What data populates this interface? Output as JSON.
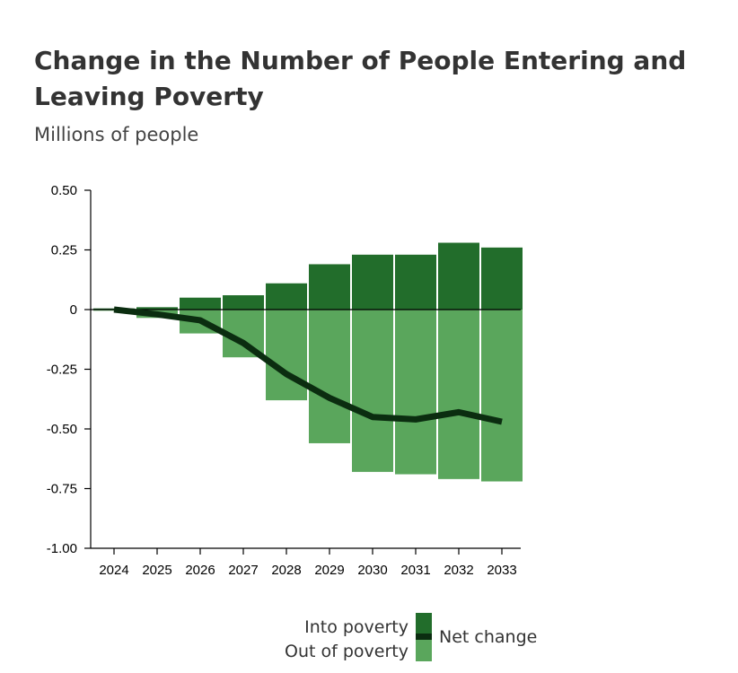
{
  "title": "Change in the Number of People Entering and Leaving Poverty",
  "subtitle": "Millions of people",
  "colors": {
    "into": "#226d2b",
    "out": "#5aa65c",
    "net": "#0b2d10"
  },
  "legend": {
    "into_label": "Into poverty",
    "out_label": "Out of poverty",
    "net_label": "Net change"
  },
  "chart_data": {
    "type": "bar",
    "title": "Change in the Number of People Entering and Leaving Poverty",
    "subtitle": "Millions of people",
    "xlabel": "",
    "ylabel": "",
    "ylim": [
      -1.0,
      0.5
    ],
    "yticks": [
      0.5,
      0.25,
      0,
      -0.25,
      -0.5,
      -0.75,
      -1.0
    ],
    "ytick_labels": [
      "0.50",
      "0.25",
      "0",
      "-0.25",
      "-0.50",
      "-0.75",
      "-1.00"
    ],
    "categories": [
      "2024",
      "2025",
      "2026",
      "2027",
      "2028",
      "2029",
      "2030",
      "2031",
      "2032",
      "2033"
    ],
    "series": [
      {
        "name": "Into poverty",
        "kind": "bar",
        "values": [
          0.005,
          0.01,
          0.05,
          0.06,
          0.11,
          0.19,
          0.23,
          0.23,
          0.28,
          0.26
        ]
      },
      {
        "name": "Out of poverty",
        "kind": "bar",
        "values": [
          -0.005,
          -0.035,
          -0.1,
          -0.2,
          -0.38,
          -0.56,
          -0.68,
          -0.69,
          -0.71,
          -0.72
        ]
      },
      {
        "name": "Net change",
        "kind": "line",
        "values": [
          0.0,
          -0.02,
          -0.045,
          -0.14,
          -0.27,
          -0.37,
          -0.45,
          -0.46,
          -0.43,
          -0.47
        ]
      }
    ],
    "legend_position": "bottom"
  }
}
